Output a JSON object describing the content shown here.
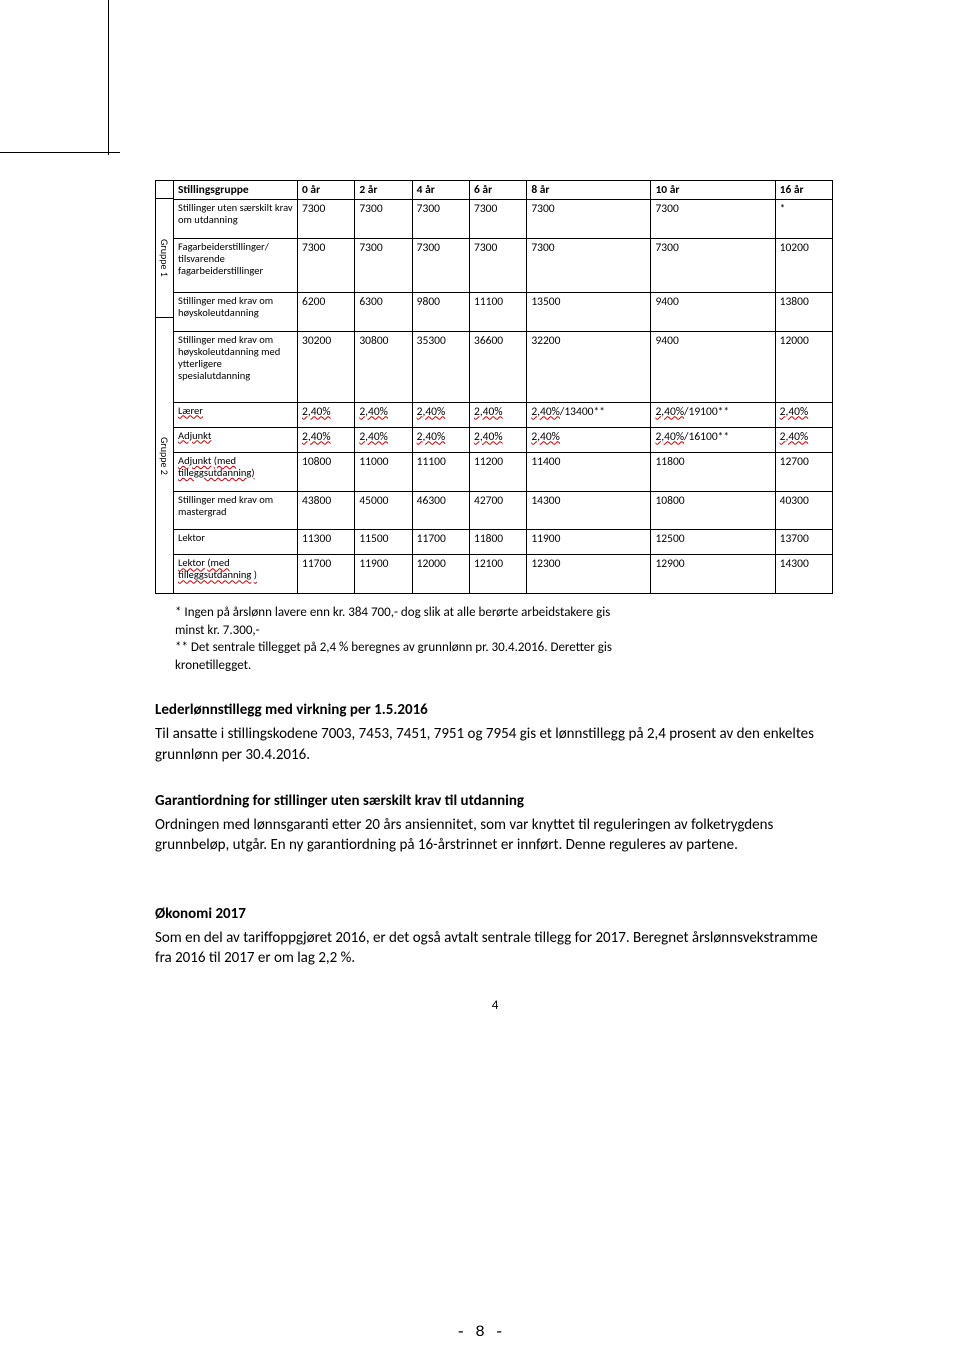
{
  "table": {
    "group1_label": "Gruppe 1",
    "group2_label": "Gruppe 2",
    "columns": [
      "Stillingsgruppe",
      "0 år",
      "2 år",
      "4 år",
      "6 år",
      "8 år",
      "10 år",
      "16 år"
    ],
    "rows": [
      {
        "label": "Stillinger uten særskilt krav om utdanning",
        "cells": [
          "7300",
          "7300",
          "7300",
          "7300",
          "7300",
          "7300",
          "*"
        ]
      },
      {
        "label": "Fagarbeiderstillinger/ tilsvarende fagarbeiderstillinger",
        "cells": [
          "7300",
          "7300",
          "7300",
          "7300",
          "7300",
          "7300",
          "10200"
        ]
      },
      {
        "label": "Stillinger med krav om høyskoleutdanning",
        "cells": [
          "6200",
          "6300",
          "9800",
          "11100",
          "13500",
          "9400",
          "13800"
        ]
      },
      {
        "label": "Stillinger med krav om høyskoleutdanning med ytterligere spesialutdanning",
        "cells": [
          "30200",
          "30800",
          "35300",
          "36600",
          "32200",
          "9400",
          "12000"
        ]
      },
      {
        "label": "Lærer",
        "cells": [
          "2,40%",
          "2,40%",
          "2,40%",
          "2,40%",
          "2,40%/13400**",
          "2,40%/19100**",
          "2,40%"
        ]
      },
      {
        "label": "Adjunkt",
        "cells": [
          "2,40%",
          "2,40%",
          "2,40%",
          "2,40%",
          "2,40%",
          "2,40%/16100**",
          "2,40%"
        ]
      },
      {
        "label": "Adjunkt (med tilleggsutdanning)",
        "cells": [
          "10800",
          "11000",
          "11100",
          "11200",
          "11400",
          "11800",
          "12700"
        ]
      },
      {
        "label": "Stillinger med krav om mastergrad",
        "cells": [
          "43800",
          "45000",
          "46300",
          "42700",
          "14300",
          "10800",
          "40300"
        ]
      },
      {
        "label": "Lektor",
        "cells": [
          "11300",
          "11500",
          "11700",
          "11800",
          "11900",
          "12500",
          "13700"
        ]
      },
      {
        "label": "Lektor (med tilleggsutdanning )",
        "cells": [
          "11700",
          "11900",
          "12000",
          "12100",
          "12300",
          "12900",
          "14300"
        ]
      }
    ]
  },
  "footnotes": {
    "l1": "*   Ingen på årslønn lavere enn kr. 384 700,- dog slik at alle berørte arbeidstakere gis",
    "l2": "minst kr. 7.300,-",
    "l3": "** Det sentrale tillegget på 2,4 % beregnes av grunnlønn pr. 30.4.2016. Deretter gis",
    "l4": "kronetillegget."
  },
  "sections": {
    "s1h": "Lederlønnstillegg med virkning  per 1.5.2016",
    "s1p1": "Til ansatte i stillingskodene 7003, 7453, 7451, 7951 og 7954 gis et lønnstillegg på 2,4 prosent av den enkeltes grunnlønn per 30.4.2016.",
    "s2h": "Garantiordning for stillinger uten særskilt krav til utdanning",
    "s2p1": "Ordningen med lønnsgaranti etter 20 års ansiennitet, som var knyttet til reguleringen av folketrygdens grunnbeløp, utgår. En ny garantiordning på 16-årstrinnet er innført. Denne reguleres av partene.",
    "s3h": "Økonomi 2017",
    "s3p1": "Som en del av tariffoppgjøret 2016, er det også avtalt  sentrale tillegg for 2017. Beregnet årslønnsvekstramme fra 2016 til 2017 er om lag 2,2 %."
  },
  "page_inner": "4",
  "page_outer": "- 8 -"
}
